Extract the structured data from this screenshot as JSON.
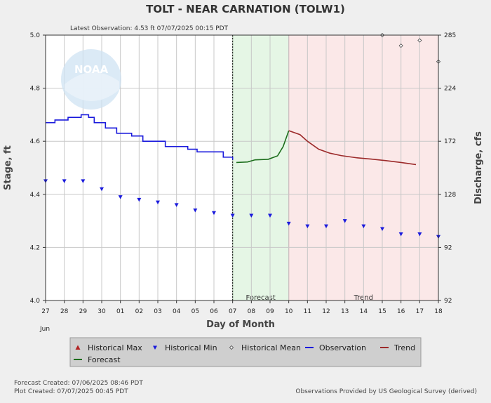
{
  "chart_data": {
    "type": "line",
    "title": "TOLT - NEAR CARNATION  (TOLW1)",
    "subtitle": "Latest Observation: 4.53 ft 07/07/2025 00:15 PDT",
    "xlabel": "Day of Month",
    "ylabel": "Stage, ft",
    "y2label": "Discharge, cfs",
    "x_ticks": [
      "27",
      "28",
      "29",
      "30",
      "01",
      "02",
      "03",
      "04",
      "05",
      "06",
      "07",
      "08",
      "09",
      "10",
      "11",
      "12",
      "13",
      "14",
      "15",
      "16",
      "17",
      "18"
    ],
    "month_label": "Jun",
    "ylim": [
      4.0,
      5.0
    ],
    "y_ticks": [
      "4.0",
      "4.2",
      "4.4",
      "4.6",
      "4.8",
      "5.0"
    ],
    "y2_ticks": [
      "92",
      "92",
      "128",
      "172",
      "224",
      "285"
    ],
    "regions": [
      {
        "label": "Forecast",
        "from": 10,
        "to": 13,
        "color": "#e5f6e5"
      },
      {
        "label": "Trend",
        "from": 13,
        "to": 21,
        "color": "#fbe8e8"
      }
    ],
    "logo": "NOAA",
    "series": [
      {
        "name": "Observation",
        "color": "#1a1adc",
        "style": "step",
        "points": [
          [
            0.0,
            4.67
          ],
          [
            0.5,
            4.68
          ],
          [
            1.2,
            4.69
          ],
          [
            1.9,
            4.7
          ],
          [
            2.3,
            4.69
          ],
          [
            2.6,
            4.67
          ],
          [
            3.2,
            4.65
          ],
          [
            3.8,
            4.63
          ],
          [
            4.6,
            4.62
          ],
          [
            5.2,
            4.6
          ],
          [
            6.4,
            4.58
          ],
          [
            7.6,
            4.57
          ],
          [
            8.1,
            4.56
          ],
          [
            9.5,
            4.54
          ],
          [
            10.0,
            4.53
          ]
        ]
      },
      {
        "name": "Forecast",
        "color": "#1c6e1c",
        "style": "line",
        "points": [
          [
            10.2,
            4.52
          ],
          [
            10.8,
            4.522
          ],
          [
            11.2,
            4.53
          ],
          [
            11.9,
            4.532
          ],
          [
            12.4,
            4.545
          ],
          [
            12.7,
            4.58
          ],
          [
            13.0,
            4.64
          ]
        ]
      },
      {
        "name": "Trend",
        "color": "#9c2a2a",
        "style": "line",
        "points": [
          [
            13.0,
            4.64
          ],
          [
            13.6,
            4.625
          ],
          [
            14.0,
            4.6
          ],
          [
            14.6,
            4.57
          ],
          [
            15.2,
            4.555
          ],
          [
            15.8,
            4.546
          ],
          [
            16.6,
            4.538
          ],
          [
            17.4,
            4.533
          ],
          [
            18.2,
            4.527
          ],
          [
            19.0,
            4.52
          ],
          [
            19.8,
            4.512
          ]
        ]
      },
      {
        "name": "Historical Min",
        "color": "#1a1adc",
        "marker": "triangle-down",
        "points": [
          [
            0,
            4.45
          ],
          [
            1,
            4.45
          ],
          [
            2,
            4.45
          ],
          [
            3,
            4.42
          ],
          [
            4,
            4.39
          ],
          [
            5,
            4.38
          ],
          [
            6,
            4.37
          ],
          [
            7,
            4.36
          ],
          [
            8,
            4.34
          ],
          [
            9,
            4.33
          ],
          [
            10,
            4.32
          ],
          [
            11,
            4.32
          ],
          [
            12,
            4.32
          ],
          [
            13,
            4.29
          ],
          [
            14,
            4.28
          ],
          [
            15,
            4.28
          ],
          [
            16,
            4.3
          ],
          [
            17,
            4.28
          ],
          [
            18,
            4.27
          ],
          [
            19,
            4.25
          ],
          [
            20,
            4.25
          ],
          [
            21,
            4.24
          ]
        ]
      },
      {
        "name": "Historical Mean",
        "color": "#444444",
        "marker": "diamond",
        "points": [
          [
            18,
            5.0
          ],
          [
            19,
            4.96
          ],
          [
            20,
            4.98
          ],
          [
            21,
            4.9
          ]
        ]
      },
      {
        "name": "Historical Max",
        "color": "#b22222",
        "marker": "triangle-up",
        "points": []
      }
    ],
    "legend": [
      {
        "label": "Historical Max",
        "marker": "triangle-up",
        "color": "#b22222"
      },
      {
        "label": "Historical Min",
        "marker": "triangle-down",
        "color": "#1a1adc"
      },
      {
        "label": "Historical Mean",
        "marker": "diamond",
        "color": "#444444"
      },
      {
        "label": "Observation",
        "marker": "line",
        "color": "#1a1adc"
      },
      {
        "label": "Trend",
        "marker": "line",
        "color": "#9c2a2a"
      },
      {
        "label": "Forecast",
        "marker": "line",
        "color": "#1c6e1c"
      }
    ],
    "footer": {
      "forecast_created": "Forecast Created: 07/06/2025 08:46 PDT",
      "plot_created": "Plot Created: 07/07/2025 00:45 PDT",
      "attribution": "Observations Provided by US Geological Survey (derived)"
    }
  }
}
